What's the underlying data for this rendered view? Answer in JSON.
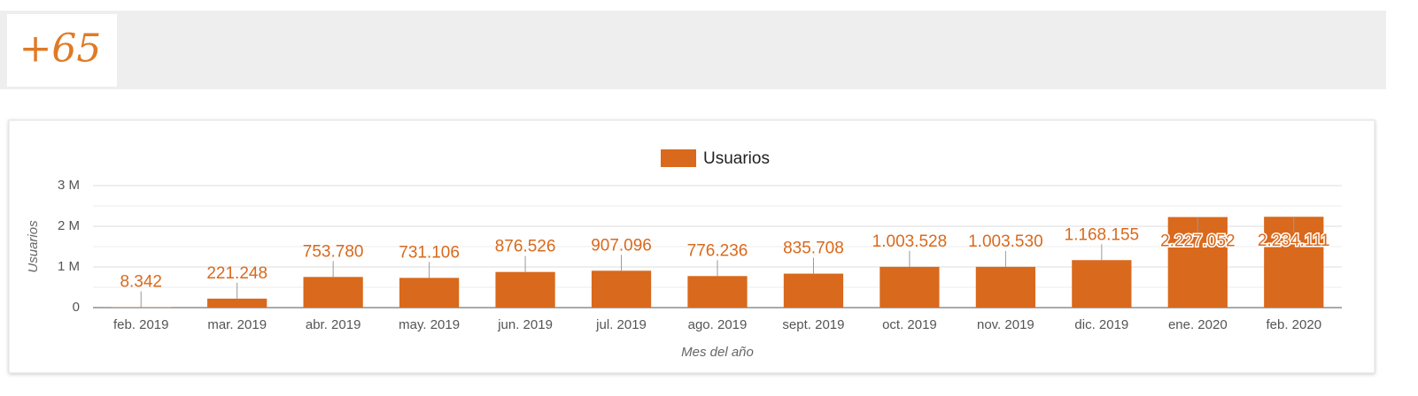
{
  "header": {
    "logo": "+65"
  },
  "chart_data": {
    "type": "bar",
    "legend": "Usuarios",
    "color": "#d9691c",
    "y_label": "Usuarios",
    "x_label": "Mes del año",
    "categories": [
      "feb. 2019",
      "mar. 2019",
      "abr. 2019",
      "may. 2019",
      "jun. 2019",
      "jul. 2019",
      "ago. 2019",
      "sept. 2019",
      "oct. 2019",
      "nov. 2019",
      "dic. 2019",
      "ene. 2020",
      "feb. 2020"
    ],
    "values": [
      8342,
      221248,
      753780,
      731106,
      876526,
      907096,
      776236,
      835708,
      1003528,
      1003530,
      1168155,
      2227052,
      2234111
    ],
    "value_labels": [
      "8.342",
      "221.248",
      "753.780",
      "731.106",
      "876.526",
      "907.096",
      "776.236",
      "835.708",
      "1.003.528",
      "1.003.530",
      "1.168.155",
      "2.227.052",
      "2.234.111"
    ],
    "ylim": [
      0,
      3000000
    ],
    "yticks": [
      0,
      {
        "value": 1000000,
        "label": "1 M"
      },
      {
        "value": 2000000,
        "label": "2 M"
      },
      {
        "value": 3000000,
        "label": "3 M"
      }
    ],
    "minor_yticks": [
      500000,
      1500000,
      2500000
    ],
    "grid": true
  }
}
